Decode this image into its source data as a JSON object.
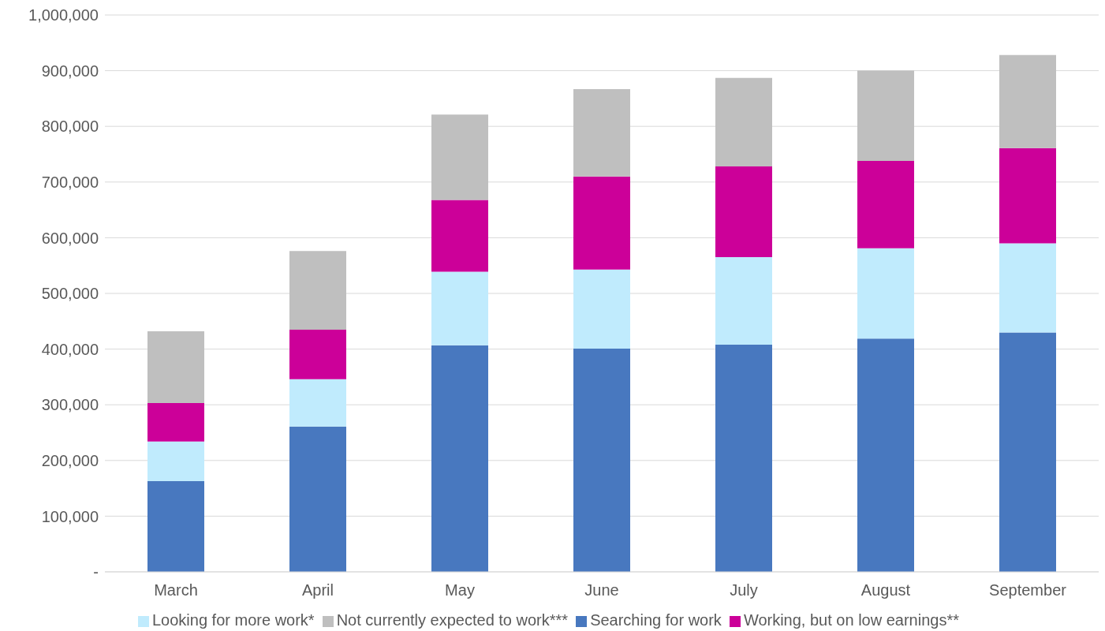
{
  "chart_data": {
    "type": "bar",
    "stacked": true,
    "categories": [
      "March",
      "April",
      "May",
      "June",
      "July",
      "August",
      "September"
    ],
    "series": [
      {
        "name": "Searching for work",
        "color": "#4878bf",
        "values": [
          163000,
          261000,
          407000,
          401000,
          408000,
          419000,
          430000
        ]
      },
      {
        "name": "Looking for more work*",
        "color": "#c0ebfd",
        "values": [
          71000,
          85000,
          132000,
          142000,
          157000,
          162000,
          160000
        ]
      },
      {
        "name": "Working, but on low earnings**",
        "color": "#cc0099",
        "values": [
          69000,
          89000,
          129000,
          167000,
          163000,
          157000,
          171000
        ]
      },
      {
        "name": "Not currently expected to work***",
        "color": "#bfbfbf",
        "values": [
          129000,
          141000,
          153000,
          157000,
          159000,
          162000,
          167000
        ]
      }
    ],
    "ylim": [
      0,
      1000000
    ],
    "yticks": [
      {
        "value": 0,
        "label": "-"
      },
      {
        "value": 100000,
        "label": "100,000"
      },
      {
        "value": 200000,
        "label": "200,000"
      },
      {
        "value": 300000,
        "label": "300,000"
      },
      {
        "value": 400000,
        "label": "400,000"
      },
      {
        "value": 500000,
        "label": "500,000"
      },
      {
        "value": 600000,
        "label": "600,000"
      },
      {
        "value": 700000,
        "label": "700,000"
      },
      {
        "value": 800000,
        "label": "800,000"
      },
      {
        "value": 900000,
        "label": "900,000"
      },
      {
        "value": 1000000,
        "label": "1,000,000"
      }
    ],
    "grid": "y",
    "legend": "bottom"
  }
}
